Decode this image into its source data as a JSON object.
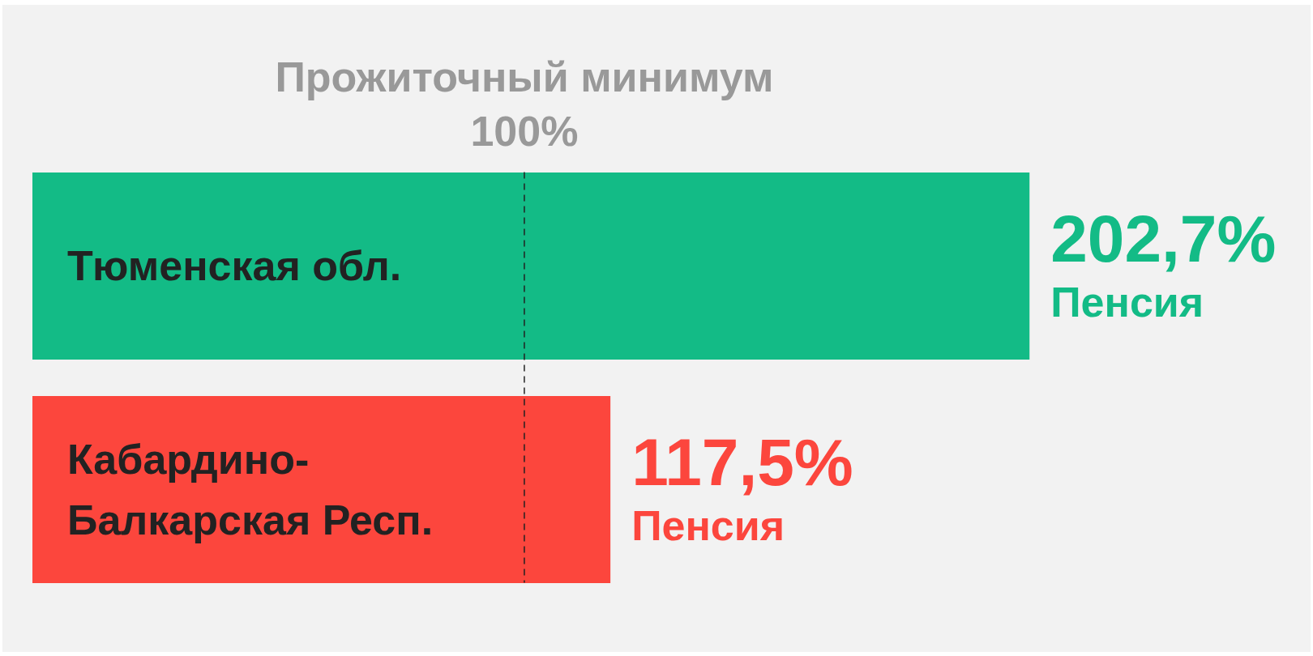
{
  "chart_data": {
    "type": "bar",
    "orientation": "horizontal",
    "categories": [
      "Тюменская обл.",
      "Кабардино-Балкарская Респ."
    ],
    "series": [
      {
        "name": "Пенсия",
        "values": [
          202.7,
          117.5
        ],
        "value_labels": [
          "202,7%",
          "117,5%"
        ]
      }
    ],
    "colors": [
      "#13bb86",
      "#fc463d"
    ],
    "xlim": [
      0,
      260
    ],
    "tick_labels": "y",
    "ref_lines": [
      {
        "axis": "x",
        "value": 100,
        "label": "Прожиточный минимум 100%",
        "line_style": "dashed",
        "color": "#222222"
      }
    ]
  }
}
